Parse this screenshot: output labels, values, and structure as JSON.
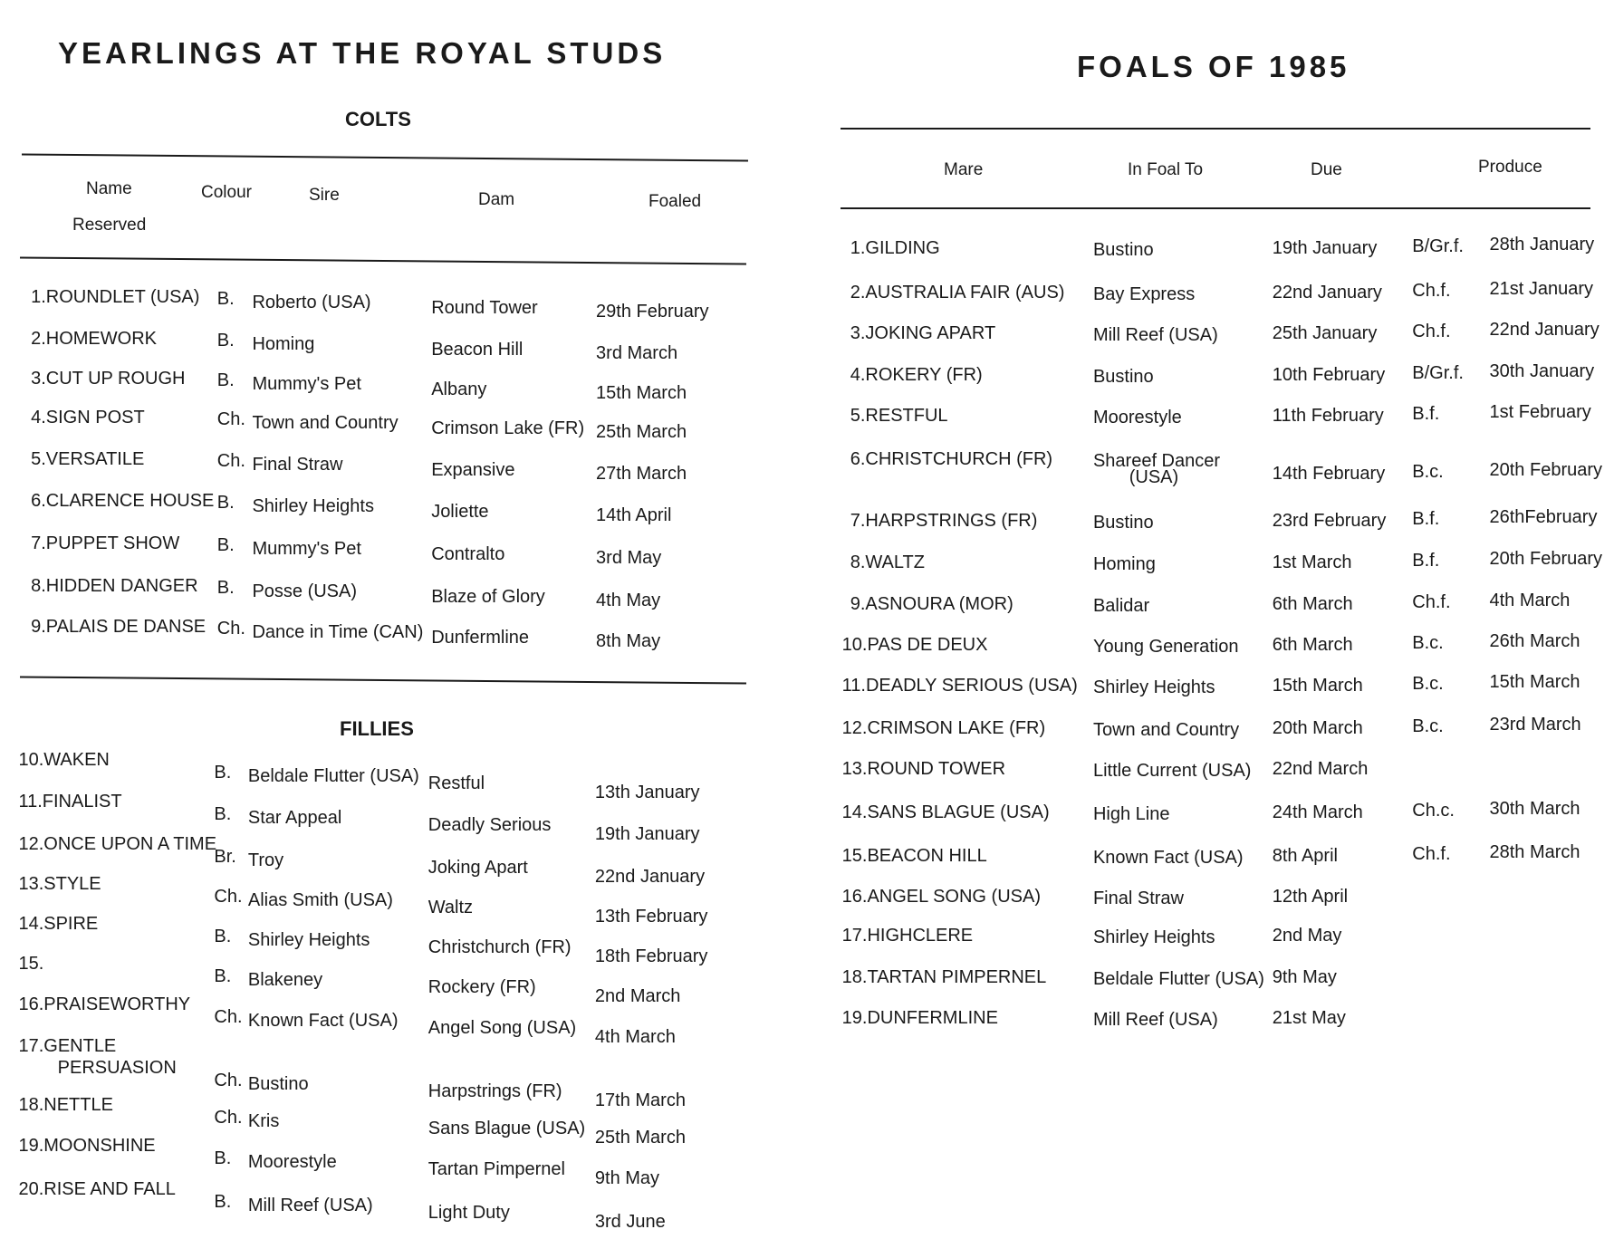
{
  "left_page": {
    "title": "YEARLINGS AT THE ROYAL STUDS",
    "colts_heading": "COLTS",
    "fillies_heading": "FILLIES",
    "headers": {
      "name": "Name",
      "reserved": "Reserved",
      "colour": "Colour",
      "sire": "Sire",
      "dam": "Dam",
      "foaled": "Foaled"
    },
    "colts": [
      {
        "name": "1.ROUNDLET (USA)",
        "colour": "B.",
        "sire": "Roberto (USA)",
        "dam": "Round Tower",
        "foaled": "29th  February"
      },
      {
        "name": "2.HOMEWORK",
        "colour": "B.",
        "sire": "Homing",
        "dam": "Beacon Hill",
        "foaled": "3rd  March"
      },
      {
        "name": "3.CUT UP ROUGH",
        "colour": "B.",
        "sire": "Mummy's Pet",
        "dam": "Albany",
        "foaled": "15th  March"
      },
      {
        "name": "4.SIGN POST",
        "colour": "Ch.",
        "sire": "Town and Country",
        "dam": "Crimson Lake (FR)",
        "foaled": "25th  March"
      },
      {
        "name": "5.VERSATILE",
        "colour": "Ch.",
        "sire": "Final Straw",
        "dam": "Expansive",
        "foaled": "27th  March"
      },
      {
        "name": "6.CLARENCE HOUSE",
        "colour": "B.",
        "sire": "Shirley Heights",
        "dam": "Joliette",
        "foaled": "14th  April"
      },
      {
        "name": "7.PUPPET SHOW",
        "colour": "B.",
        "sire": "Mummy's Pet",
        "dam": "Contralto",
        "foaled": "3rd  May"
      },
      {
        "name": "8.HIDDEN DANGER",
        "colour": "B.",
        "sire": "Posse (USA)",
        "dam": "Blaze of Glory",
        "foaled": "4th  May"
      },
      {
        "name": "9.PALAIS DE DANSE",
        "colour": "Ch.",
        "sire": "Dance in Time (CAN)",
        "dam": "Dunfermline",
        "foaled": "8th  May"
      }
    ],
    "fillies": [
      {
        "name": "10.WAKEN",
        "colour": "B.",
        "sire": "Beldale Flutter (USA)",
        "dam": "Restful",
        "foaled": "13th  January"
      },
      {
        "name": "11.FINALIST",
        "colour": "B.",
        "sire": "Star Appeal",
        "dam": "Deadly Serious",
        "foaled": "19th  January"
      },
      {
        "name": "12.ONCE UPON A TIME",
        "colour": "Br.",
        "sire": "Troy",
        "dam": "Joking Apart",
        "foaled": "22nd  January"
      },
      {
        "name": "13.STYLE",
        "colour": "Ch.",
        "sire": "Alias Smith (USA)",
        "dam": "Waltz",
        "foaled": "13th  February"
      },
      {
        "name": "14.SPIRE",
        "colour": "B.",
        "sire": "Shirley Heights",
        "dam": "Christchurch (FR)",
        "foaled": "18th  February"
      },
      {
        "name": "15.",
        "colour": "B.",
        "sire": "Blakeney",
        "dam": "Rockery (FR)",
        "foaled": "2nd  March"
      },
      {
        "name": "16.PRAISEWORTHY",
        "colour": "Ch.",
        "sire": "Known Fact (USA)",
        "dam": "Angel Song (USA)",
        "foaled": "4th  March"
      },
      {
        "name": "17.GENTLE",
        "name2": "PERSUASION",
        "colour": "Ch.",
        "sire": "Bustino",
        "dam": "Harpstrings (FR)",
        "foaled": "17th  March"
      },
      {
        "name": "18.NETTLE",
        "colour": "Ch.",
        "sire": "Kris",
        "dam": "Sans Blague (USA)",
        "foaled": "25th  March"
      },
      {
        "name": "19.MOONSHINE",
        "colour": "B.",
        "sire": "Moorestyle",
        "dam": "Tartan Pimpernel",
        "foaled": "9th  May"
      },
      {
        "name": "20.RISE AND FALL",
        "colour": "B.",
        "sire": "Mill Reef (USA)",
        "dam": "Light Duty",
        "foaled": "3rd  June"
      }
    ]
  },
  "right_page": {
    "title": "FOALS OF 1985",
    "headers": {
      "mare": "Mare",
      "in_foal_to": "In Foal To",
      "due": "Due",
      "produce": "Produce"
    },
    "rows": [
      {
        "mare": "1.GILDING",
        "in_foal_to": "Bustino",
        "due": "19th  January",
        "sex": "B/Gr.f.",
        "produce": "28th  January"
      },
      {
        "mare": "2.AUSTRALIA FAIR (AUS)",
        "in_foal_to": "Bay Express",
        "due": "22nd  January",
        "sex": "Ch.f.",
        "produce": "21st  January"
      },
      {
        "mare": "3.JOKING APART",
        "in_foal_to": "Mill Reef (USA)",
        "due": "25th  January",
        "sex": "Ch.f.",
        "produce": "22nd  January"
      },
      {
        "mare": "4.ROKERY (FR)",
        "in_foal_to": "Bustino",
        "due": "10th  February",
        "sex": "B/Gr.f.",
        "produce": "30th  January"
      },
      {
        "mare": "5.RESTFUL",
        "in_foal_to": "Moorestyle",
        "due": "11th  February",
        "sex": "B.f.",
        "produce": "1st  February"
      },
      {
        "mare": "6.CHRISTCHURCH (FR)",
        "in_foal_to": "Shareef Dancer",
        "in_foal_to2": "(USA)",
        "due": "14th  February",
        "sex": "B.c.",
        "produce": "20th  February"
      },
      {
        "mare": "7.HARPSTRINGS (FR)",
        "in_foal_to": "Bustino",
        "due": "23rd  February",
        "sex": "B.f.",
        "produce": "26thFebruary"
      },
      {
        "mare": "8.WALTZ",
        "in_foal_to": "Homing",
        "due": "1st  March",
        "sex": "B.f.",
        "produce": "20th  February"
      },
      {
        "mare": "9.ASNOURA (MOR)",
        "in_foal_to": "Balidar",
        "due": "6th  March",
        "sex": "Ch.f.",
        "produce": "4th  March"
      },
      {
        "mare": "10.PAS DE DEUX",
        "in_foal_to": "Young Generation",
        "due": "6th  March",
        "sex": "B.c.",
        "produce": "26th  March"
      },
      {
        "mare": "11.DEADLY SERIOUS (USA)",
        "in_foal_to": "Shirley Heights",
        "due": "15th  March",
        "sex": "B.c.",
        "produce": "15th  March"
      },
      {
        "mare": "12.CRIMSON LAKE (FR)",
        "in_foal_to": "Town and Country",
        "due": "20th  March",
        "sex": "B.c.",
        "produce": "23rd  March"
      },
      {
        "mare": "13.ROUND TOWER",
        "in_foal_to": "Little Current (USA)",
        "due": "22nd  March",
        "sex": "",
        "produce": ""
      },
      {
        "mare": "14.SANS BLAGUE (USA)",
        "in_foal_to": "High Line",
        "due": "24th  March",
        "sex": "Ch.c.",
        "produce": "30th  March"
      },
      {
        "mare": "15.BEACON HILL",
        "in_foal_to": "Known Fact (USA)",
        "due": "8th  April",
        "sex": "Ch.f.",
        "produce": "28th  March"
      },
      {
        "mare": "16.ANGEL SONG (USA)",
        "in_foal_to": "Final Straw",
        "due": "12th  April",
        "sex": "",
        "produce": ""
      },
      {
        "mare": "17.HIGHCLERE",
        "in_foal_to": "Shirley Heights",
        "due": "2nd  May",
        "sex": "",
        "produce": ""
      },
      {
        "mare": "18.TARTAN PIMPERNEL",
        "in_foal_to": "Beldale Flutter (USA)",
        "due": "9th  May",
        "sex": "",
        "produce": ""
      },
      {
        "mare": "19.DUNFERMLINE",
        "in_foal_to": "Mill Reef (USA)",
        "due": "21st  May",
        "sex": "",
        "produce": ""
      }
    ]
  }
}
